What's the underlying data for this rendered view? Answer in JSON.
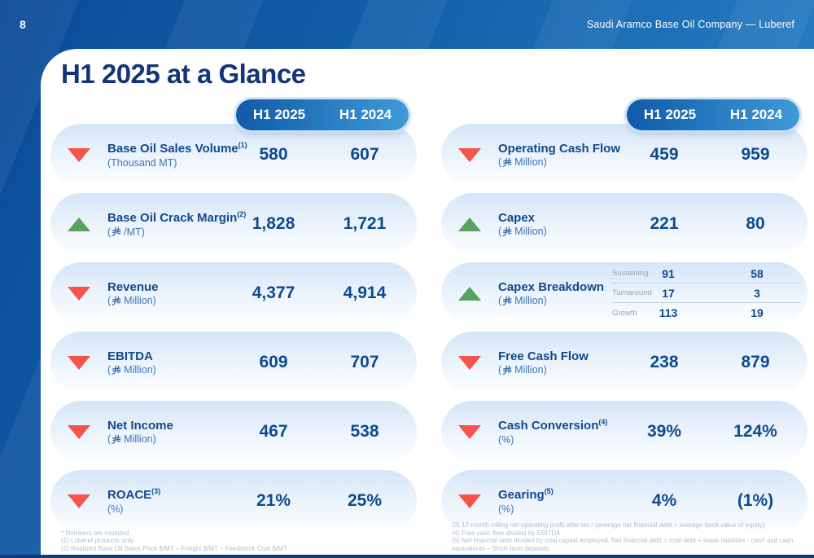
{
  "topbar": {
    "page_number": "8",
    "company": "Saudi Aramco Base Oil Company — Luberef"
  },
  "title": "H1 2025 at a Glance",
  "period_labels": {
    "col1": "H1 2025",
    "col2": "H1 2024"
  },
  "colors": {
    "trend_down": "#f4544c",
    "trend_up": "#58a160",
    "value_navy": "#0f4a8f",
    "pill_gradient_start": "#0f5aa9",
    "pill_gradient_end": "#3f9ad7"
  },
  "columns": [
    {
      "rows": [
        {
          "trend": "down",
          "label": "Base Oil Sales Volume",
          "sup": "(1)",
          "unit_pre": "(Thousand MT)",
          "riyal": false,
          "unit_post": "",
          "values": [
            "580",
            "607"
          ]
        },
        {
          "trend": "up",
          "label": "Base Oil Crack Margin",
          "sup": "(2)",
          "unit_pre": "(",
          "riyal": true,
          "unit_post": "/MT)",
          "values": [
            "1,828",
            "1,721"
          ]
        },
        {
          "trend": "down",
          "label": "Revenue",
          "sup": "",
          "unit_pre": "(",
          "riyal": true,
          "unit_post": "Million)",
          "values": [
            "4,377",
            "4,914"
          ]
        },
        {
          "trend": "down",
          "label": "EBITDA",
          "sup": "",
          "unit_pre": "(",
          "riyal": true,
          "unit_post": "Million)",
          "values": [
            "609",
            "707"
          ]
        },
        {
          "trend": "down",
          "label": "Net Income",
          "sup": "",
          "unit_pre": "(",
          "riyal": true,
          "unit_post": "Million)",
          "values": [
            "467",
            "538"
          ]
        },
        {
          "trend": "down",
          "label": "ROACE",
          "sup": "(3)",
          "unit_pre": "(%)",
          "riyal": false,
          "unit_post": "",
          "values": [
            "21%",
            "25%"
          ]
        }
      ]
    },
    {
      "rows": [
        {
          "trend": "down",
          "label": "Operating Cash Flow",
          "sup": "",
          "unit_pre": "(",
          "riyal": true,
          "unit_post": "Million)",
          "values": [
            "459",
            "959"
          ]
        },
        {
          "trend": "up",
          "label": "Capex",
          "sup": "",
          "unit_pre": "(",
          "riyal": true,
          "unit_post": "Million)",
          "values": [
            "221",
            "80"
          ]
        },
        {
          "trend": "up",
          "label": "Capex Breakdown",
          "sup": "",
          "unit_pre": "(",
          "riyal": true,
          "unit_post": "Million)",
          "breakdown": [
            {
              "name": "Sustaining",
              "values": [
                "91",
                "58"
              ]
            },
            {
              "name": "Turnaround",
              "values": [
                "17",
                "3"
              ]
            },
            {
              "name": "Growth",
              "values": [
                "113",
                "19"
              ]
            }
          ]
        },
        {
          "trend": "down",
          "label": "Free Cash Flow",
          "sup": "",
          "unit_pre": "(",
          "riyal": true,
          "unit_post": "Million)",
          "values": [
            "238",
            "879"
          ]
        },
        {
          "trend": "down",
          "label": "Cash Conversion",
          "sup": "(4)",
          "unit_pre": "(%)",
          "riyal": false,
          "unit_post": "",
          "values": [
            "39%",
            "124%"
          ]
        },
        {
          "trend": "down",
          "label": "Gearing",
          "sup": "(5)",
          "unit_pre": "(%)",
          "riyal": false,
          "unit_post": "",
          "values": [
            "4%",
            "(1%)"
          ]
        }
      ]
    }
  ],
  "footnotes": {
    "left": [
      "* Numbers are rounded",
      "(1) Luberef products only.",
      "(2) Realized Base Oil Sales Price $/MT – Freight $/MT – Feedstock Cost  $/MT"
    ],
    "right": [
      "(3) 12-month rolling net operating profit after tax / (average net financial debt + average book value of equity)",
      "(4) Free cash flow divided by EBITDA",
      "(5) Net financial debt divided by total capital employed. Net financial debt = total debt + lease liabilities - cash and cash equivalents – Short-term deposits"
    ]
  }
}
